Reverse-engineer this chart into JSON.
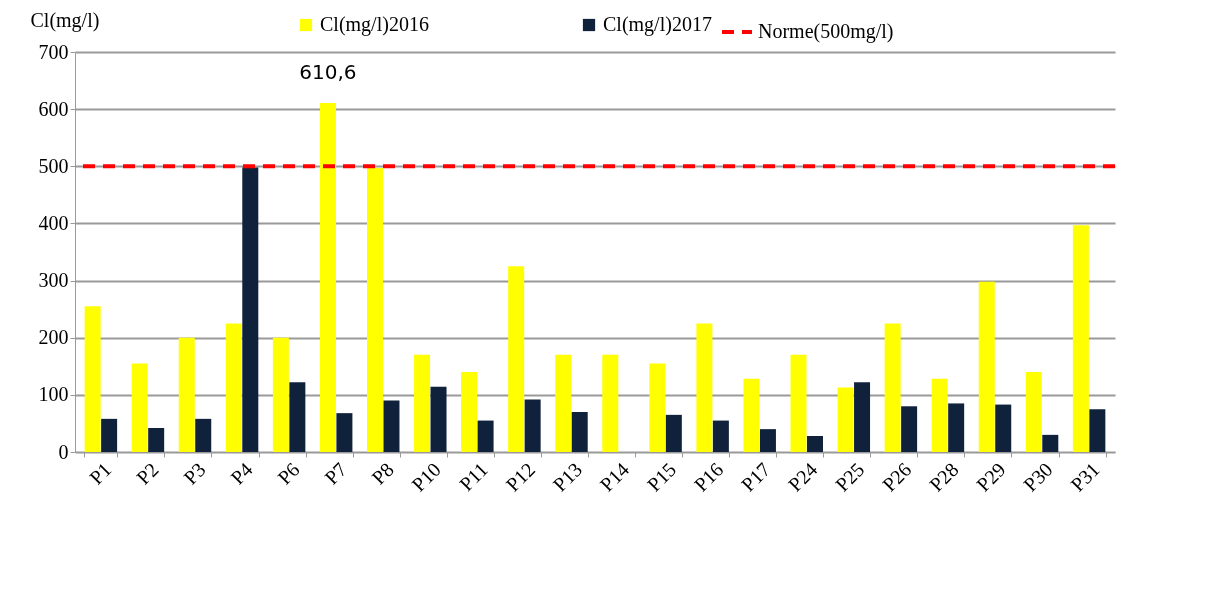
{
  "chart_data": {
    "type": "bar",
    "ylabel": "Cl(mg/l)",
    "categories": [
      "P1",
      "P2",
      "P3",
      "P4",
      "P6",
      "P7",
      "P8",
      "P10",
      "P11",
      "P12",
      "P13",
      "P14",
      "P15",
      "P16",
      "P17",
      "P24",
      "P25",
      "P26",
      "P28",
      "P29",
      "P30",
      "P31"
    ],
    "series": [
      {
        "name": "Cl(mg/l)2016",
        "color": "#ffff00",
        "values": [
          255,
          155,
          200,
          225,
          200,
          610.6,
          497,
          170,
          140,
          325,
          170,
          170,
          155,
          225,
          128,
          170,
          113,
          225,
          128,
          298,
          140,
          397
        ],
        "value_labels": [
          null,
          null,
          null,
          null,
          null,
          "610,6",
          null,
          null,
          null,
          null,
          null,
          null,
          null,
          null,
          null,
          null,
          null,
          null,
          null,
          null,
          null,
          null
        ]
      },
      {
        "name": "Cl(mg/l)2017",
        "color": "#10213b",
        "values": [
          58,
          42,
          58,
          498,
          122,
          68,
          90,
          114,
          55,
          92,
          70,
          null,
          65,
          55,
          40,
          28,
          122,
          80,
          85,
          83,
          30,
          75
        ]
      }
    ],
    "ylim": [
      0,
      700
    ],
    "yticks": [
      0,
      100,
      200,
      300,
      400,
      500,
      600,
      700
    ],
    "grid": "y",
    "legend": "top",
    "ref_lines": [
      {
        "axis": "y",
        "value": 500,
        "label": "Norme(500mg/l)",
        "color": "#ff0000",
        "line_style": "dashed"
      }
    ]
  }
}
